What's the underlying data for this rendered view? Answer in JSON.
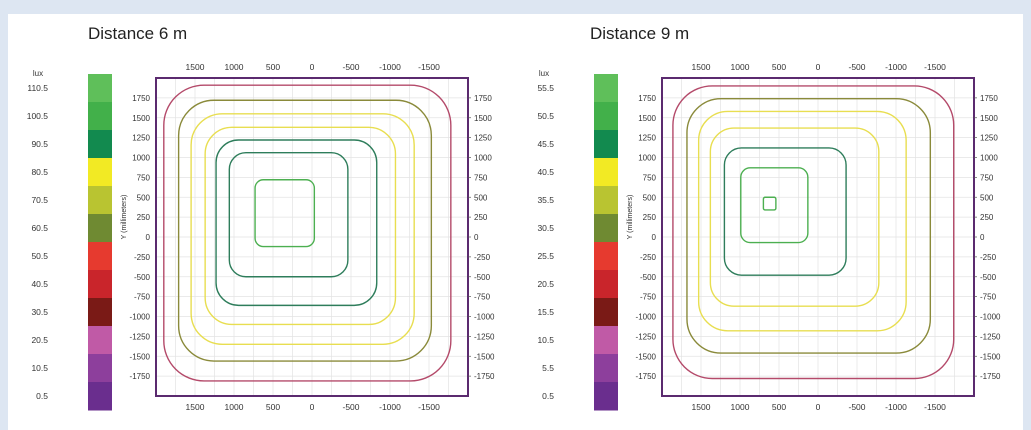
{
  "panels": [
    {
      "title": "Distance 6 m",
      "scale_unit": "lux",
      "scale_labels": [
        "110.5",
        "100.5",
        "90.5",
        "80.5",
        "70.5",
        "60.5",
        "50.5",
        "40.5",
        "30.5",
        "20.5",
        "10.5",
        "0.5"
      ],
      "x_ticks": [
        "1500",
        "1000",
        "500",
        "0",
        "-500",
        "-1000",
        "-1500"
      ],
      "y_ticks": [
        "1750",
        "1500",
        "1250",
        "1000",
        "750",
        "500",
        "250",
        "0",
        "-250",
        "-500",
        "-750",
        "-1000",
        "-1250",
        "-1500",
        "-1750"
      ],
      "y_axis_label": "Y (millimeters)"
    },
    {
      "title": "Distance 9 m",
      "scale_unit": "lux",
      "scale_labels": [
        "55.5",
        "50.5",
        "45.5",
        "40.5",
        "35.5",
        "30.5",
        "25.5",
        "20.5",
        "15.5",
        "10.5",
        "5.5",
        "0.5"
      ],
      "x_ticks": [
        "1500",
        "1000",
        "500",
        "0",
        "-500",
        "-1000",
        "-1500"
      ],
      "y_ticks": [
        "1750",
        "1500",
        "1250",
        "1000",
        "750",
        "500",
        "250",
        "0",
        "-250",
        "-500",
        "-750",
        "-1000",
        "-1250",
        "-1500",
        "-1750"
      ],
      "y_axis_label": "Y (millimeters)"
    }
  ],
  "scale_colors": [
    "#5fbf5a",
    "#42b04a",
    "#128a4f",
    "#f2ea24",
    "#b9c431",
    "#6f8a32",
    "#e63a2f",
    "#c9252b",
    "#7a1a16",
    "#c05aa6",
    "#8d3f9c",
    "#6a2e8e"
  ],
  "chart_data": [
    {
      "type": "heatmap",
      "subtype": "isolux contour map",
      "title": "Distance 6 m",
      "ylabel": "Y (millimeters)",
      "xlim": [
        2000,
        -2000
      ],
      "ylim": [
        -2000,
        2000
      ],
      "legend_position": "left",
      "color_scale_lux": [
        110.5,
        100.5,
        90.5,
        80.5,
        70.5,
        60.5,
        50.5,
        40.5,
        30.5,
        20.5,
        10.5,
        0.5
      ],
      "peak_center": {
        "x": 350,
        "y": 350
      },
      "contours": [
        {
          "color": "#4caf50",
          "rx": 380,
          "ry": 420,
          "cx": 350,
          "cy": 300
        },
        {
          "color": "#2e7d5b",
          "rx": 760,
          "ry": 780,
          "cx": 300,
          "cy": 280
        },
        {
          "color": "#2e7d5b",
          "rx": 1030,
          "ry": 1040,
          "cx": 200,
          "cy": 180
        },
        {
          "color": "#e8de50",
          "rx": 1220,
          "ry": 1240,
          "cx": 150,
          "cy": 140
        },
        {
          "color": "#e8de50",
          "rx": 1430,
          "ry": 1450,
          "cx": 120,
          "cy": 100
        },
        {
          "color": "#8a8a3a",
          "rx": 1620,
          "ry": 1640,
          "cx": 90,
          "cy": 80
        },
        {
          "color": "#b44a6a",
          "rx": 1840,
          "ry": 1860,
          "cx": 60,
          "cy": 50
        }
      ],
      "grid": true
    },
    {
      "type": "heatmap",
      "subtype": "isolux contour map",
      "title": "Distance 9 m",
      "ylabel": "Y (millimeters)",
      "xlim": [
        2000,
        -2000
      ],
      "ylim": [
        -2000,
        2000
      ],
      "legend_position": "left",
      "color_scale_lux": [
        55.5,
        50.5,
        45.5,
        40.5,
        35.5,
        30.5,
        25.5,
        20.5,
        15.5,
        10.5,
        5.5,
        0.5
      ],
      "peak_center": {
        "x": 620,
        "y": 420
      },
      "contours": [
        {
          "color": "#4caf50",
          "rx": 80,
          "ry": 80,
          "cx": 620,
          "cy": 420
        },
        {
          "color": "#4caf50",
          "rx": 430,
          "ry": 470,
          "cx": 560,
          "cy": 400
        },
        {
          "color": "#2e7d5b",
          "rx": 780,
          "ry": 800,
          "cx": 420,
          "cy": 320
        },
        {
          "color": "#e8de50",
          "rx": 1080,
          "ry": 1120,
          "cx": 300,
          "cy": 250
        },
        {
          "color": "#e8de50",
          "rx": 1330,
          "ry": 1380,
          "cx": 200,
          "cy": 200
        },
        {
          "color": "#8a8a3a",
          "rx": 1560,
          "ry": 1600,
          "cx": 120,
          "cy": 140
        },
        {
          "color": "#b44a6a",
          "rx": 1800,
          "ry": 1840,
          "cx": 60,
          "cy": 60
        }
      ],
      "grid": true
    }
  ]
}
